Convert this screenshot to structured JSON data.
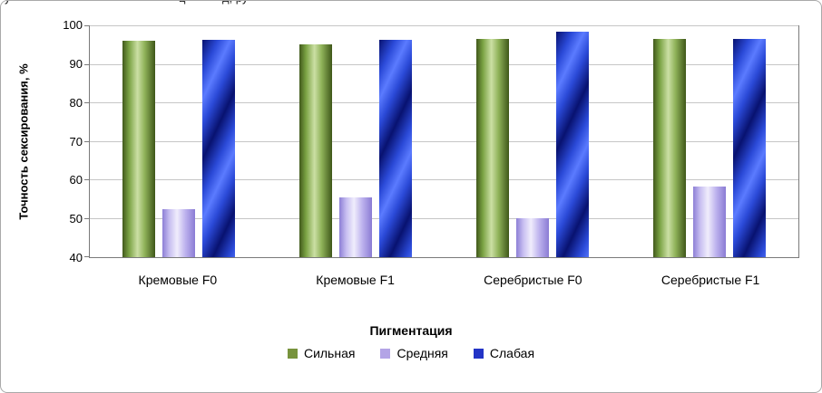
{
  "cropped_caption": {
    "fragments": [
      {
        "x": 4,
        "text": "у"
      },
      {
        "x": 196,
        "text": "ц"
      },
      {
        "x": 244,
        "text": "д, ру"
      }
    ]
  },
  "chart_data": {
    "type": "bar",
    "title": "",
    "ylabel": "Точность сексирования, %",
    "legend_title": "Пигментация",
    "ylim": [
      40,
      100
    ],
    "yticks": [
      40,
      50,
      60,
      70,
      80,
      90,
      100
    ],
    "grid": true,
    "legend_position": "bottom",
    "categories": [
      "Кремовые F0",
      "Кремовые F1",
      "Серебристые F0",
      "Серебристые F1"
    ],
    "series": [
      {
        "name": "Сильная",
        "color": "#77933C",
        "values": [
          96.2,
          95.4,
          96.8,
          96.8
        ]
      },
      {
        "name": "Средняя",
        "color": "#B3A4E6",
        "values": [
          52.5,
          55.5,
          50.2,
          58.3
        ]
      },
      {
        "name": "Слабая",
        "color": "#2334C6",
        "values": [
          96.5,
          96.5,
          98.5,
          96.8
        ]
      }
    ]
  }
}
